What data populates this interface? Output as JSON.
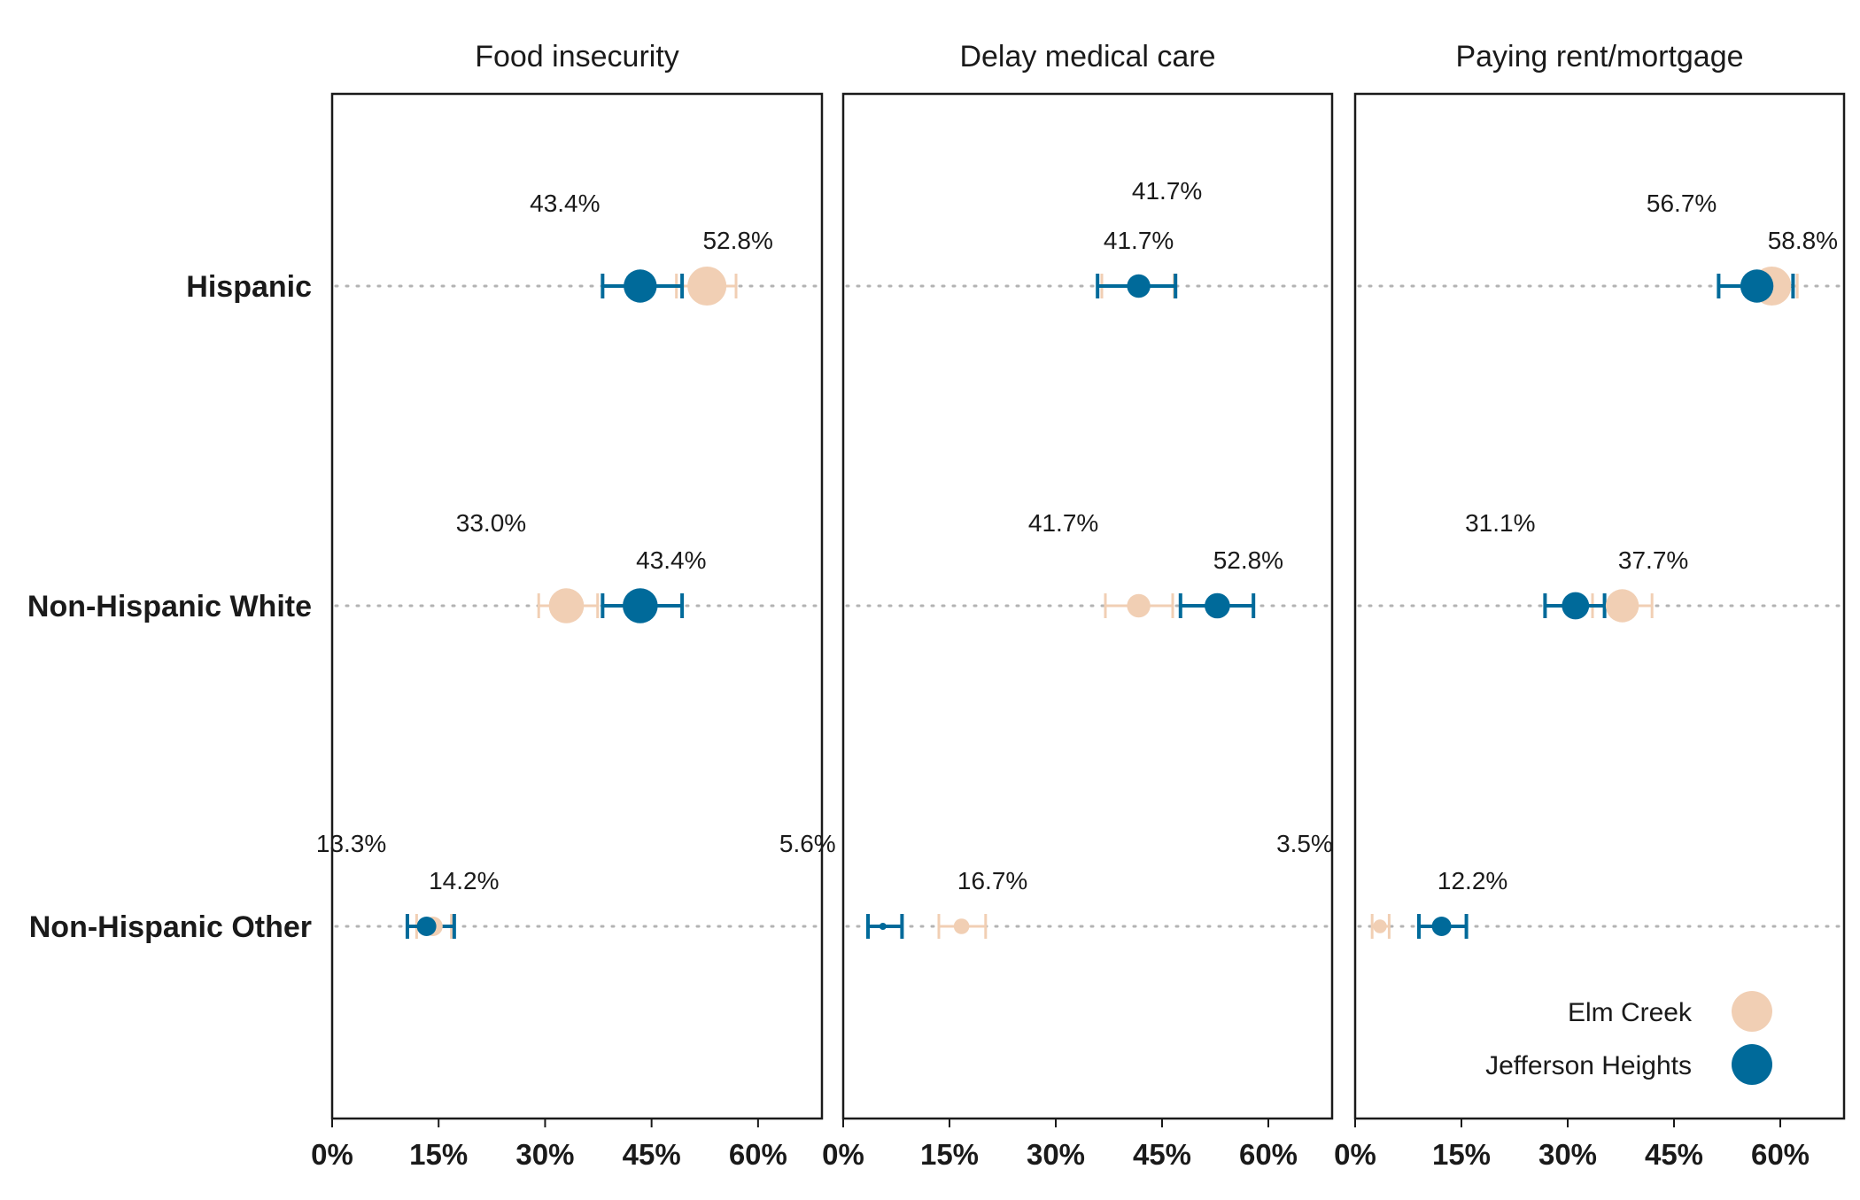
{
  "chart_data": {
    "type": "scatter",
    "subtype": "dot-plot-with-error-bars",
    "x_axis": {
      "ticks": [
        0,
        15,
        30,
        45,
        60
      ],
      "tick_labels": [
        "0%",
        "15%",
        "30%",
        "45%",
        "60%"
      ],
      "xlim": [
        0,
        69
      ]
    },
    "categories": [
      "Hispanic",
      "Non-Hispanic White",
      "Non-Hispanic Other"
    ],
    "legend": {
      "placement": "bottom-right (inside third panel)",
      "items": [
        {
          "name": "Elm Creek",
          "color": "#f1cfb4"
        },
        {
          "name": "Jefferson Heights",
          "color": "#006a9a"
        }
      ]
    },
    "colors": {
      "elm_creek": "#f1cfb4",
      "jefferson_heights": "#006a9a",
      "grid_dots": "#b3b3b3",
      "frame": "#1a1a1a"
    },
    "panels": [
      {
        "title": "Food insecurity",
        "rows": [
          {
            "category": "Hispanic",
            "elm_creek": {
              "value": 52.8,
              "ci": [
                48.5,
                56.9
              ],
              "size": 1.0,
              "label": "52.8%"
            },
            "jefferson_heights": {
              "value": 43.4,
              "ci": [
                38.1,
                49.3
              ],
              "size": 0.85,
              "label": "43.4%"
            }
          },
          {
            "category": "Non-Hispanic White",
            "elm_creek": {
              "value": 33.0,
              "ci": [
                29.1,
                37.4
              ],
              "size": 0.9,
              "label": "33.0%"
            },
            "jefferson_heights": {
              "value": 43.4,
              "ci": [
                38.1,
                49.3
              ],
              "size": 0.9,
              "label": "43.4%"
            }
          },
          {
            "category": "Non-Hispanic Other",
            "elm_creek": {
              "value": 14.2,
              "ci": [
                11.9,
                16.8
              ],
              "size": 0.5,
              "label": "14.2%"
            },
            "jefferson_heights": {
              "value": 13.3,
              "ci": [
                10.6,
                17.2
              ],
              "size": 0.5,
              "label": "13.3%"
            }
          }
        ]
      },
      {
        "title": "Delay medical care",
        "rows": [
          {
            "category": "Hispanic",
            "elm_creek": {
              "value": 41.7,
              "ci": [
                36.5,
                46.7
              ],
              "size": 0.4,
              "label": "41.7%"
            },
            "jefferson_heights": {
              "value": 41.7,
              "ci": [
                35.9,
                46.9
              ],
              "size": 0.6,
              "label": "41.7%"
            }
          },
          {
            "category": "Non-Hispanic White",
            "elm_creek": {
              "value": 41.7,
              "ci": [
                37.0,
                46.5
              ],
              "size": 0.6,
              "label": "41.7%"
            },
            "jefferson_heights": {
              "value": 52.8,
              "ci": [
                47.6,
                57.9
              ],
              "size": 0.65,
              "label": "52.8%"
            }
          },
          {
            "category": "Non-Hispanic Other",
            "elm_creek": {
              "value": 16.7,
              "ci": [
                13.5,
                20.1
              ],
              "size": 0.4,
              "label": "16.7%"
            },
            "jefferson_heights": {
              "value": 5.6,
              "ci": [
                3.5,
                8.3
              ],
              "size": 0.15,
              "label": "5.6%"
            }
          }
        ]
      },
      {
        "title": "Paying rent/mortgage",
        "rows": [
          {
            "category": "Hispanic",
            "elm_creek": {
              "value": 58.8,
              "ci": [
                55.4,
                62.4
              ],
              "size": 1.0,
              "label": "58.8%"
            },
            "jefferson_heights": {
              "value": 56.7,
              "ci": [
                51.3,
                61.8
              ],
              "size": 0.85,
              "label": "56.7%"
            }
          },
          {
            "category": "Non-Hispanic White",
            "elm_creek": {
              "value": 37.7,
              "ci": [
                33.5,
                41.9
              ],
              "size": 0.85,
              "label": "37.7%"
            },
            "jefferson_heights": {
              "value": 31.1,
              "ci": [
                26.8,
                35.2
              ],
              "size": 0.7,
              "label": "31.1%"
            }
          },
          {
            "category": "Non-Hispanic Other",
            "elm_creek": {
              "value": 3.5,
              "ci": [
                2.4,
                4.8
              ],
              "size": 0.35,
              "label": "3.5%"
            },
            "jefferson_heights": {
              "value": 12.2,
              "ci": [
                9.0,
                15.7
              ],
              "size": 0.5,
              "label": "12.2%"
            }
          }
        ]
      }
    ]
  }
}
